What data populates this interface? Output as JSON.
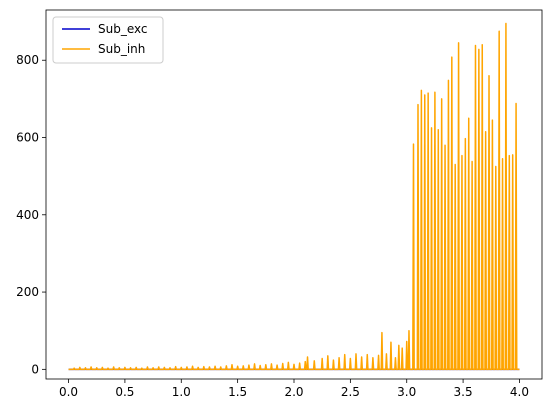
{
  "chart_data": {
    "type": "line",
    "title": "",
    "xlabel": "",
    "ylabel": "",
    "xlim": [
      -0.2,
      4.2
    ],
    "ylim": [
      -25,
      930
    ],
    "xticks": [
      0.0,
      0.5,
      1.0,
      1.5,
      2.0,
      2.5,
      3.0,
      3.5,
      4.0
    ],
    "xtick_labels": [
      "0.0",
      "0.5",
      "1.0",
      "1.5",
      "2.0",
      "2.5",
      "3.0",
      "3.5",
      "4.0"
    ],
    "yticks": [
      0,
      200,
      400,
      600,
      800
    ],
    "ytick_labels": [
      "0",
      "200",
      "400",
      "600",
      "800"
    ],
    "grid": false,
    "legend_position": "top-left",
    "series": [
      {
        "name": "Sub_exc",
        "color": "#0000cc",
        "x": [
          0.0,
          4.0
        ],
        "values": [
          0,
          0
        ]
      },
      {
        "name": "Sub_inh",
        "color": "#ffa500",
        "baseline": 0,
        "spikes": [
          [
            0.05,
            3
          ],
          [
            0.1,
            5
          ],
          [
            0.15,
            4
          ],
          [
            0.2,
            6
          ],
          [
            0.25,
            4
          ],
          [
            0.3,
            5
          ],
          [
            0.35,
            3
          ],
          [
            0.4,
            6
          ],
          [
            0.45,
            4
          ],
          [
            0.5,
            5
          ],
          [
            0.55,
            4
          ],
          [
            0.6,
            5
          ],
          [
            0.65,
            3
          ],
          [
            0.7,
            6
          ],
          [
            0.75,
            4
          ],
          [
            0.8,
            6
          ],
          [
            0.85,
            5
          ],
          [
            0.9,
            4
          ],
          [
            0.95,
            7
          ],
          [
            1.0,
            5
          ],
          [
            1.05,
            6
          ],
          [
            1.1,
            8
          ],
          [
            1.15,
            5
          ],
          [
            1.2,
            7
          ],
          [
            1.25,
            6
          ],
          [
            1.3,
            8
          ],
          [
            1.35,
            6
          ],
          [
            1.4,
            9
          ],
          [
            1.45,
            12
          ],
          [
            1.5,
            8
          ],
          [
            1.55,
            9
          ],
          [
            1.6,
            11
          ],
          [
            1.65,
            14
          ],
          [
            1.7,
            10
          ],
          [
            1.75,
            12
          ],
          [
            1.8,
            14
          ],
          [
            1.85,
            11
          ],
          [
            1.9,
            15
          ],
          [
            1.95,
            18
          ],
          [
            2.0,
            13
          ],
          [
            2.05,
            16
          ],
          [
            2.1,
            20
          ],
          [
            2.12,
            32
          ],
          [
            2.18,
            22
          ],
          [
            2.25,
            28
          ],
          [
            2.3,
            35
          ],
          [
            2.35,
            24
          ],
          [
            2.4,
            30
          ],
          [
            2.45,
            38
          ],
          [
            2.5,
            28
          ],
          [
            2.55,
            40
          ],
          [
            2.6,
            32
          ],
          [
            2.65,
            38
          ],
          [
            2.7,
            30
          ],
          [
            2.75,
            36
          ],
          [
            2.78,
            95
          ],
          [
            2.82,
            40
          ],
          [
            2.86,
            70
          ],
          [
            2.9,
            30
          ],
          [
            2.93,
            62
          ],
          [
            2.96,
            55
          ],
          [
            3.0,
            72
          ],
          [
            3.02,
            100
          ],
          [
            3.06,
            583
          ],
          [
            3.1,
            685
          ],
          [
            3.13,
            722
          ],
          [
            3.16,
            710
          ],
          [
            3.19,
            715
          ],
          [
            3.22,
            625
          ],
          [
            3.25,
            717
          ],
          [
            3.28,
            620
          ],
          [
            3.31,
            700
          ],
          [
            3.34,
            580
          ],
          [
            3.37,
            748
          ],
          [
            3.4,
            808
          ],
          [
            3.43,
            530
          ],
          [
            3.46,
            845
          ],
          [
            3.49,
            553
          ],
          [
            3.52,
            597
          ],
          [
            3.55,
            650
          ],
          [
            3.58,
            538
          ],
          [
            3.61,
            838
          ],
          [
            3.64,
            828
          ],
          [
            3.67,
            840
          ],
          [
            3.7,
            615
          ],
          [
            3.73,
            760
          ],
          [
            3.76,
            645
          ],
          [
            3.79,
            525
          ],
          [
            3.82,
            875
          ],
          [
            3.85,
            545
          ],
          [
            3.88,
            895
          ],
          [
            3.91,
            553
          ],
          [
            3.94,
            555
          ],
          [
            3.97,
            688
          ]
        ]
      }
    ]
  }
}
